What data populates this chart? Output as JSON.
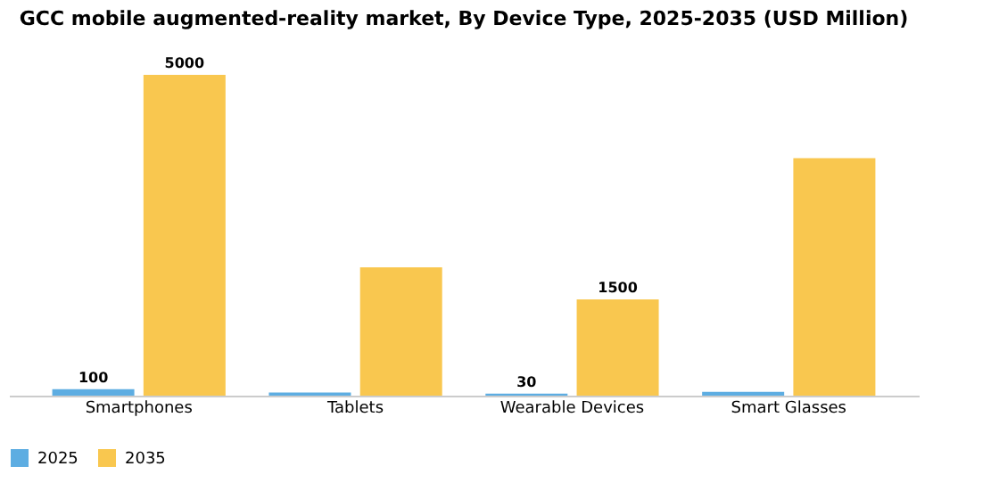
{
  "chart_data": {
    "type": "bar",
    "title": "GCC mobile augmented-reality market, By Device Type, 2025-2035 (USD Million)",
    "categories": [
      "Smartphones",
      "Tablets",
      "Wearable Devices",
      "Smart Glasses"
    ],
    "series": [
      {
        "name": "2025",
        "color": "#5dade2",
        "values": [
          100,
          50,
          30,
          60
        ],
        "value_labels": [
          "100",
          null,
          "30",
          null
        ]
      },
      {
        "name": "2035",
        "color": "#f9c74f",
        "values": [
          5000,
          2000,
          1500,
          3700
        ],
        "value_labels": [
          "5000",
          null,
          "1500",
          null
        ]
      }
    ],
    "legend": "bottom",
    "grid": false
  }
}
